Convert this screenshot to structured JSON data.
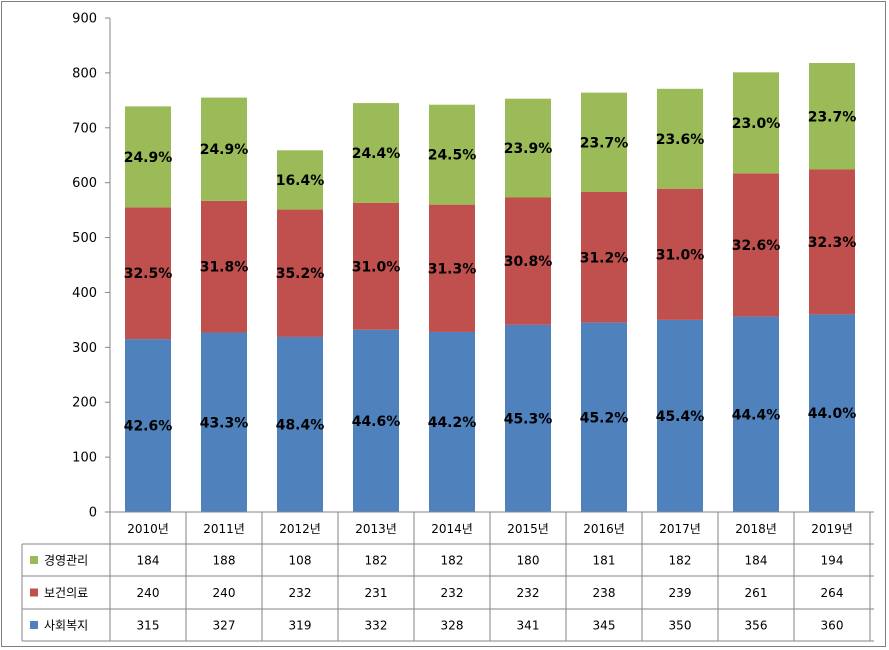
{
  "chart_data": {
    "type": "bar",
    "stacked": true,
    "categories": [
      "2010년",
      "2011년",
      "2012년",
      "2013년",
      "2014년",
      "2015년",
      "2016년",
      "2017년",
      "2018년",
      "2019년"
    ],
    "ylim": [
      0,
      900
    ],
    "yticks": [
      0,
      100,
      200,
      300,
      400,
      500,
      600,
      700,
      800,
      900
    ],
    "grid": false,
    "data_table": true,
    "series": [
      {
        "name": "사회복지",
        "color": "#4F81BD",
        "values": [
          315,
          327,
          319,
          332,
          328,
          341,
          345,
          350,
          356,
          360
        ],
        "labels": [
          "42.6%",
          "43.3%",
          "48.4%",
          "44.6%",
          "44.2%",
          "45.3%",
          "45.2%",
          "45.4%",
          "44.4%",
          "44.0%"
        ]
      },
      {
        "name": "보건의료",
        "color": "#C0504D",
        "values": [
          240,
          240,
          232,
          231,
          232,
          232,
          238,
          239,
          261,
          264
        ],
        "labels": [
          "32.5%",
          "31.8%",
          "35.2%",
          "31.0%",
          "31.3%",
          "30.8%",
          "31.2%",
          "31.0%",
          "32.6%",
          "32.3%"
        ]
      },
      {
        "name": "경영관리",
        "color": "#9BBB59",
        "values": [
          184,
          188,
          108,
          182,
          182,
          180,
          181,
          182,
          184,
          194
        ],
        "labels": [
          "24.9%",
          "24.9%",
          "16.4%",
          "24.4%",
          "24.5%",
          "23.9%",
          "23.7%",
          "23.6%",
          "23.0%",
          "23.7%"
        ]
      }
    ]
  }
}
